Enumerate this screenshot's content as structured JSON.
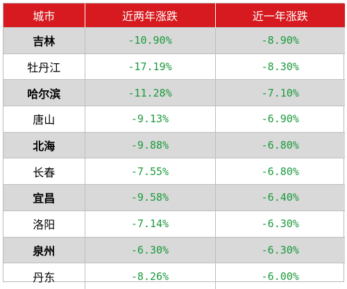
{
  "headers": [
    "城市",
    "近两年涨跌",
    "近一年涨跌"
  ],
  "rows": [
    {
      "city": "吉林",
      "two_year": "-10.90%",
      "one_year": "-8.90%"
    },
    {
      "city": "牡丹江",
      "two_year": "-17.19%",
      "one_year": "-8.30%"
    },
    {
      "city": "哈尔滨",
      "two_year": "-11.28%",
      "one_year": "-7.10%"
    },
    {
      "city": "唐山",
      "two_year": "-9.13%",
      "one_year": "-6.90%"
    },
    {
      "city": "北海",
      "two_year": "-9.88%",
      "one_year": "-6.80%"
    },
    {
      "city": "长春",
      "two_year": "-7.55%",
      "one_year": "-6.80%"
    },
    {
      "city": "宜昌",
      "two_year": "-9.58%",
      "one_year": "-6.40%"
    },
    {
      "city": "洛阳",
      "two_year": "-7.14%",
      "one_year": "-6.30%"
    },
    {
      "city": "泉州",
      "two_year": "-6.30%",
      "one_year": "-6.30%"
    },
    {
      "city": "丹东",
      "two_year": "-8.26%",
      "one_year": "-6.00%"
    }
  ],
  "colors": {
    "header_bg": "#d61a1f",
    "header_text": "#ffffff",
    "shaded_row": "#d9d9d9",
    "value_text": "#1a9a3b"
  }
}
